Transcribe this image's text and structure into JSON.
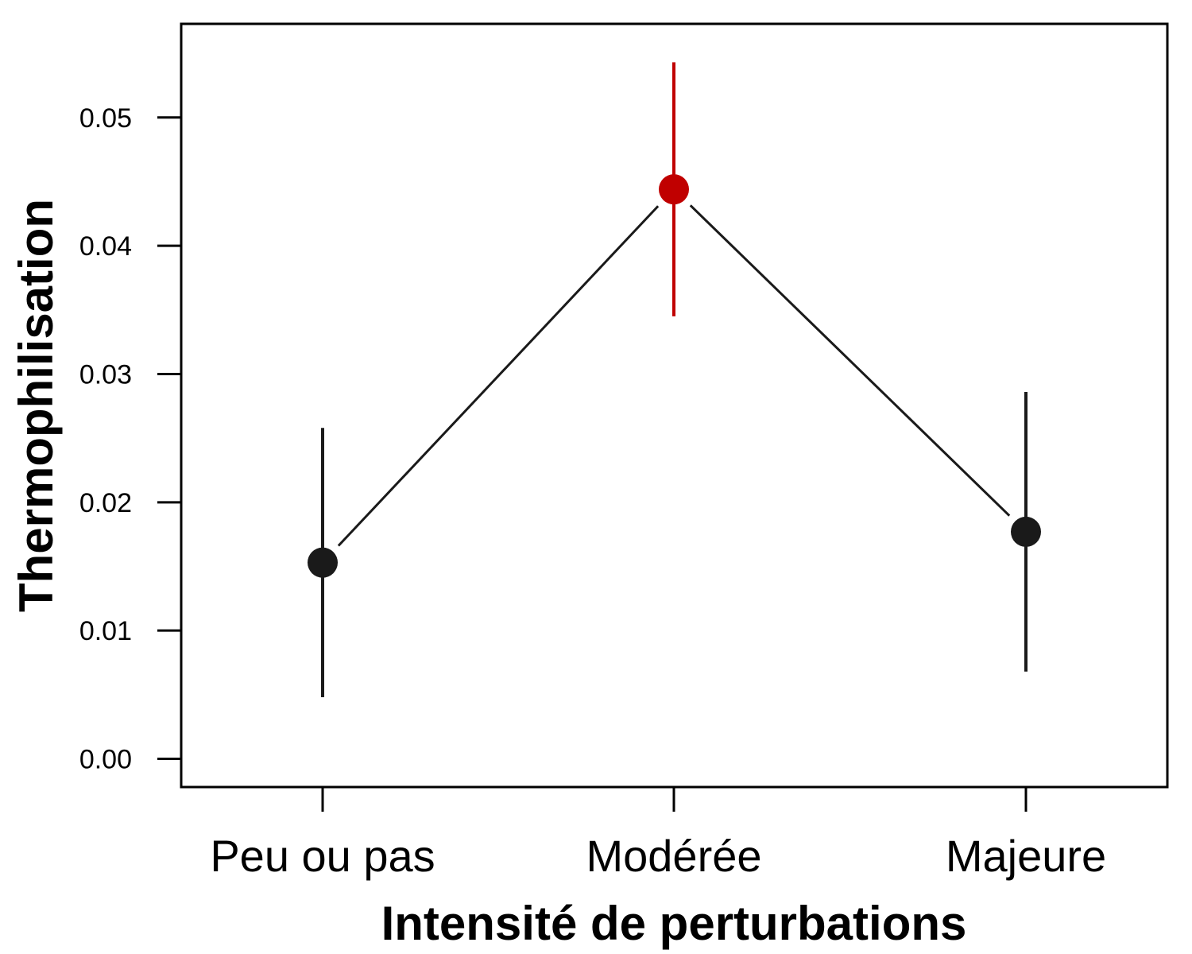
{
  "chart_data": {
    "type": "scatter",
    "title": "",
    "xlabel": "Intensité de perturbations",
    "ylabel": "Thermophilisation",
    "categories": [
      "Peu ou pas",
      "Modérée",
      "Majeure"
    ],
    "y_ticks": [
      "0.00",
      "0.01",
      "0.02",
      "0.03",
      "0.04",
      "0.05"
    ],
    "ylim": [
      -0.0022,
      0.0573
    ],
    "grid": false,
    "legend": "none",
    "connected": true,
    "points": [
      {
        "category": "Peu ou pas",
        "mean": 0.0153,
        "lower": 0.0048,
        "upper": 0.0258,
        "color": "#1a1a1a"
      },
      {
        "category": "Modérée",
        "mean": 0.0444,
        "lower": 0.0345,
        "upper": 0.0543,
        "color": "#c00000"
      },
      {
        "category": "Majeure",
        "mean": 0.0177,
        "lower": 0.0068,
        "upper": 0.0286,
        "color": "#1a1a1a"
      }
    ],
    "line_color": "#1a1a1a"
  }
}
